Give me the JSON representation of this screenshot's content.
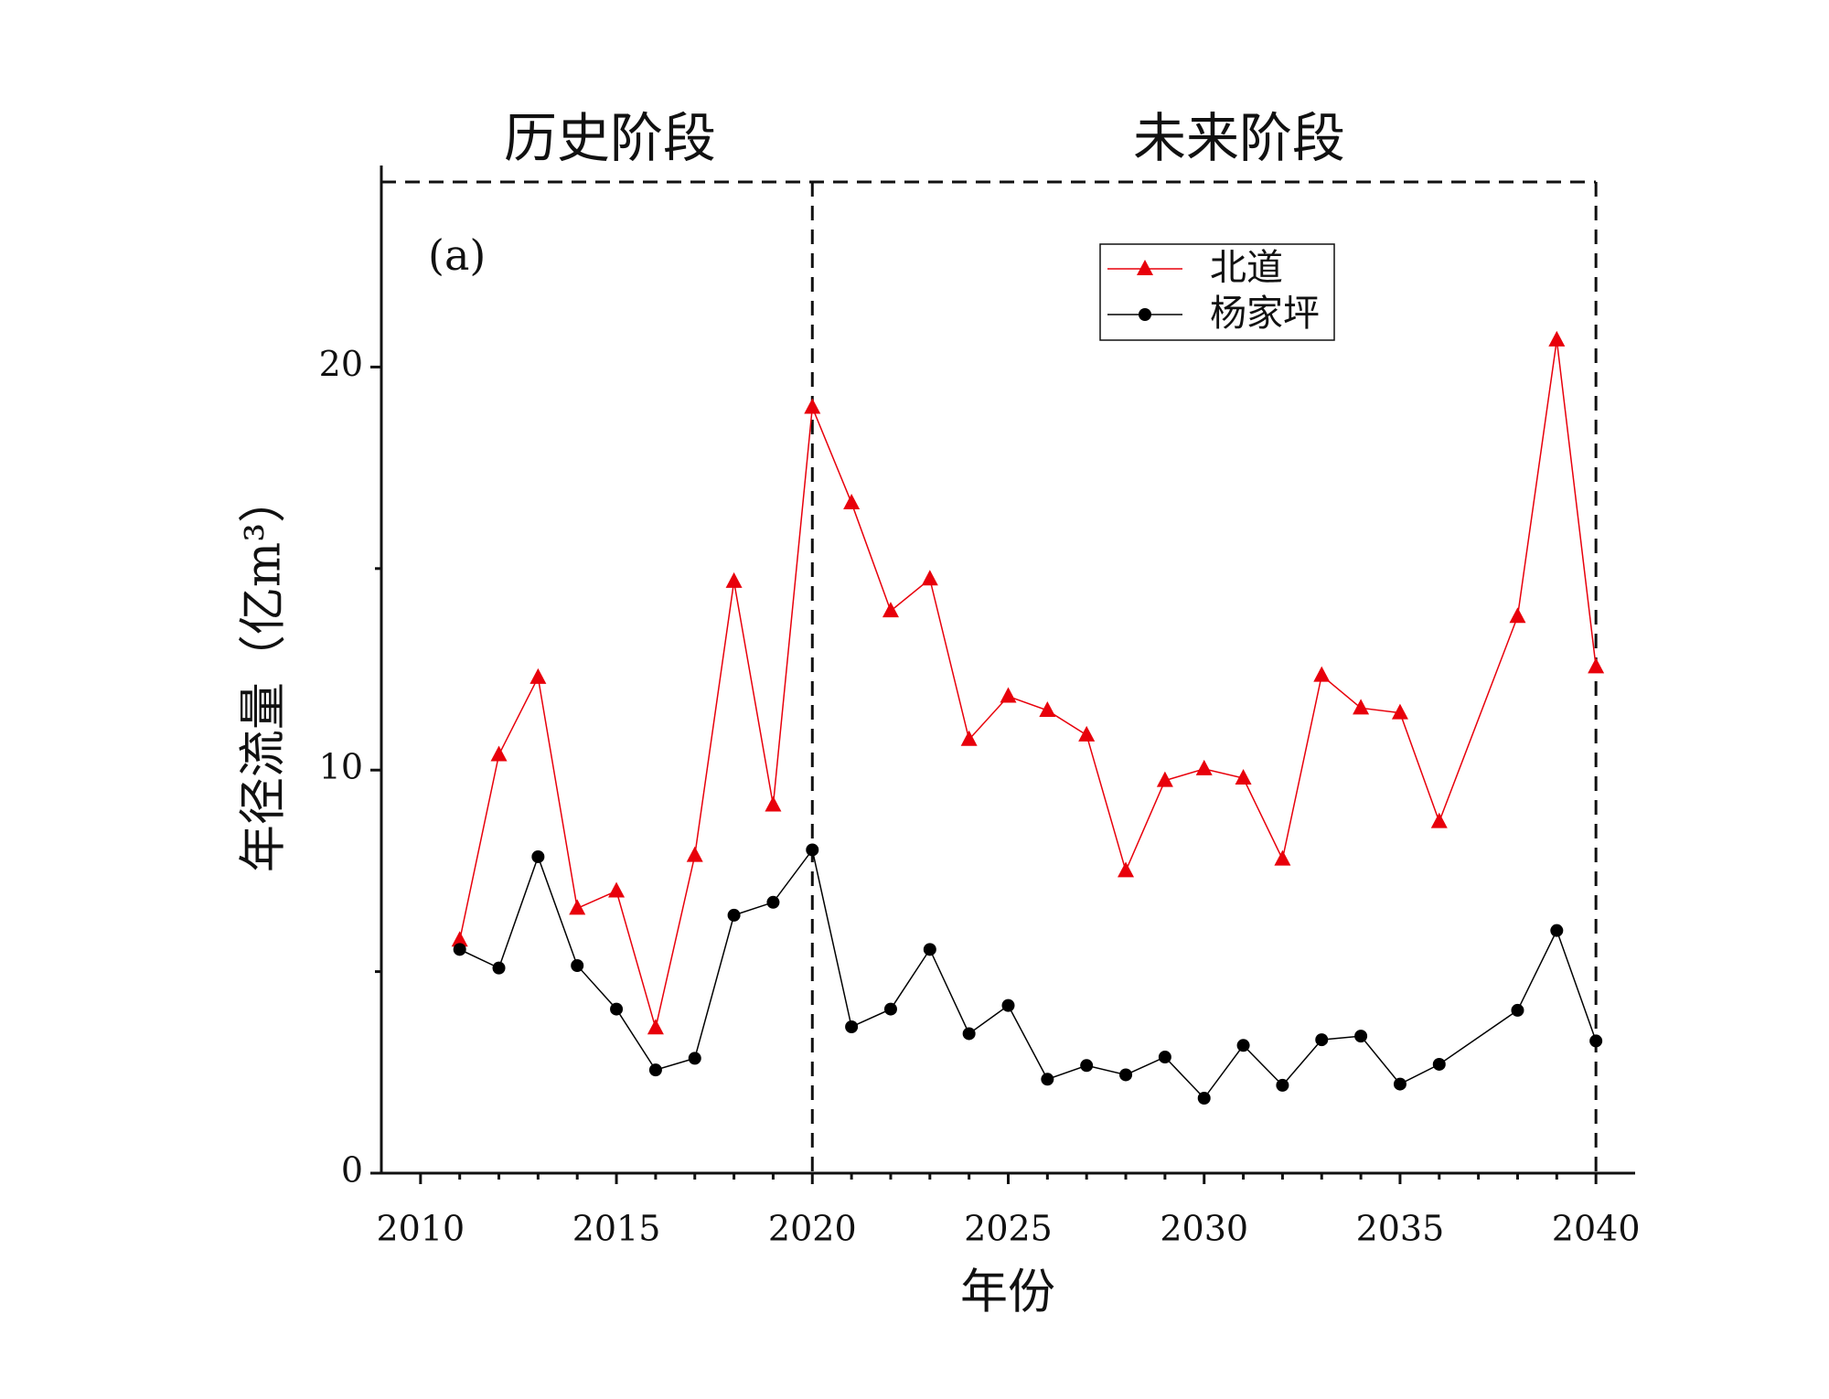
{
  "chart_data": {
    "type": "line",
    "annotations": [
      "历史阶段",
      "未来阶段",
      "(a)"
    ],
    "xlabel": "年份",
    "ylabel": "年径流量（亿m³）",
    "x": [
      2011,
      2012,
      2013,
      2014,
      2015,
      2016,
      2017,
      2018,
      2019,
      2020,
      2021,
      2022,
      2023,
      2024,
      2025,
      2026,
      2027,
      2028,
      2029,
      2030,
      2031,
      2032,
      2033,
      2034,
      2035,
      2036,
      2038,
      2039,
      2040
    ],
    "series": [
      {
        "name": "北道",
        "color": "#e8000b",
        "marker": "triangle",
        "values": [
          5.78,
          10.38,
          12.3,
          6.57,
          7.0,
          3.6,
          7.88,
          14.68,
          9.13,
          19.0,
          16.63,
          13.95,
          14.74,
          10.76,
          11.83,
          11.48,
          10.87,
          7.5,
          9.74,
          10.03,
          9.8,
          7.79,
          12.35,
          11.54,
          11.42,
          8.72,
          13.81,
          20.67,
          12.56
        ]
      },
      {
        "name": "杨家坪",
        "color": "#000000",
        "marker": "circle",
        "values": [
          5.55,
          5.09,
          7.85,
          5.15,
          4.07,
          2.56,
          2.85,
          6.4,
          6.72,
          8.02,
          3.63,
          4.07,
          5.55,
          3.46,
          4.16,
          2.33,
          2.67,
          2.44,
          2.88,
          1.86,
          3.17,
          2.18,
          3.31,
          3.4,
          2.21,
          2.7,
          4.04,
          6.02,
          3.28
        ]
      }
    ],
    "xlim": [
      2009,
      2041
    ],
    "xticks": [
      2010,
      2015,
      2020,
      2025,
      2030,
      2035,
      2040
    ],
    "xminorticks": [
      2011,
      2012,
      2013,
      2014,
      2016,
      2017,
      2018,
      2019,
      2021,
      2022,
      2023,
      2024,
      2026,
      2027,
      2028,
      2029,
      2031,
      2032,
      2033,
      2034,
      2036,
      2037,
      2038,
      2039
    ],
    "ylim": [
      0,
      25
    ],
    "yticks": [
      0,
      10,
      20
    ],
    "yminorticks": [
      5,
      15
    ],
    "dividers": [
      2020,
      2040
    ],
    "legend": "upper right"
  }
}
